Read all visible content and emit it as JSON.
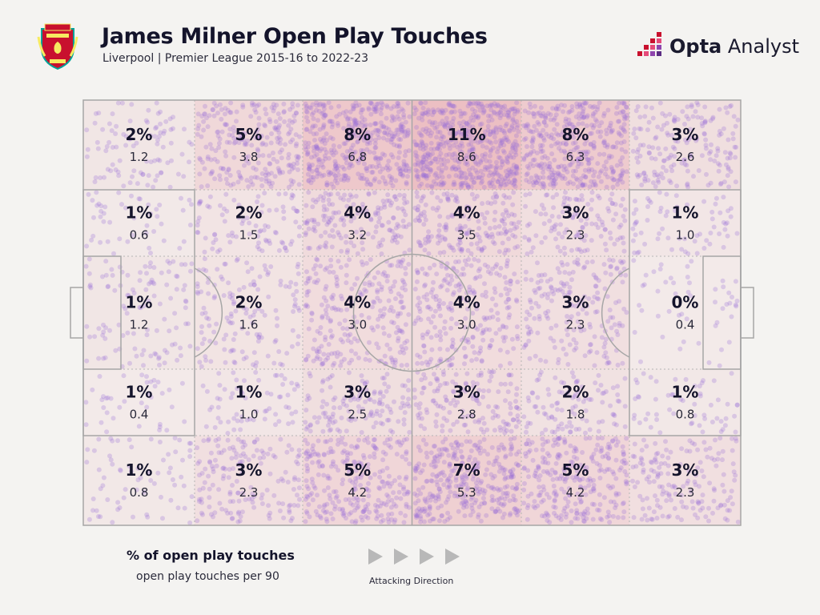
{
  "header": {
    "title": "James Milner Open Play Touches",
    "subtitle": "Liverpool | Premier League 2015-16 to 2022-23",
    "brand_bold": "Opta",
    "brand_light": " Analyst",
    "crest_icon": "liverpool-crest-icon",
    "brand_icon": "opta-analyst-logo-icon"
  },
  "legend": {
    "primary_label": "% of open play touches",
    "secondary_label": "open play touches per 90",
    "direction_label": "Attacking Direction",
    "direction_icon": "play-arrow-icon"
  },
  "colors": {
    "background": "#f4f3f1",
    "dots": "#9b6fd6",
    "heat": "#e8a0a8",
    "lines": "#a6a6a6"
  },
  "chart_data": {
    "type": "heatmap",
    "title": "James Milner Open Play Touches",
    "rows": 5,
    "cols": 6,
    "pct_labels": [
      [
        "2%",
        "5%",
        "8%",
        "11%",
        "8%",
        "3%"
      ],
      [
        "1%",
        "2%",
        "4%",
        "4%",
        "3%",
        "1%"
      ],
      [
        "1%",
        "2%",
        "4%",
        "4%",
        "3%",
        "0%"
      ],
      [
        "1%",
        "1%",
        "3%",
        "3%",
        "2%",
        "1%"
      ],
      [
        "1%",
        "3%",
        "5%",
        "7%",
        "5%",
        "3%"
      ]
    ],
    "per90_labels": [
      [
        "1.2",
        "3.8",
        "6.8",
        "8.6",
        "6.3",
        "2.6"
      ],
      [
        "0.6",
        "1.5",
        "3.2",
        "3.5",
        "2.3",
        "1.0"
      ],
      [
        "1.2",
        "1.6",
        "3.0",
        "3.0",
        "2.3",
        "0.4"
      ],
      [
        "0.4",
        "1.0",
        "2.5",
        "2.8",
        "1.8",
        "0.8"
      ],
      [
        "0.8",
        "2.3",
        "4.2",
        "5.3",
        "4.2",
        "2.3"
      ]
    ],
    "per90": [
      [
        1.2,
        3.8,
        6.8,
        8.6,
        6.3,
        2.6
      ],
      [
        0.6,
        1.5,
        3.2,
        3.5,
        2.3,
        1.0
      ],
      [
        1.2,
        1.6,
        3.0,
        3.0,
        2.3,
        0.4
      ],
      [
        0.4,
        1.0,
        2.5,
        2.8,
        1.8,
        0.8
      ],
      [
        0.8,
        2.3,
        4.2,
        5.3,
        4.2,
        2.3
      ]
    ]
  }
}
